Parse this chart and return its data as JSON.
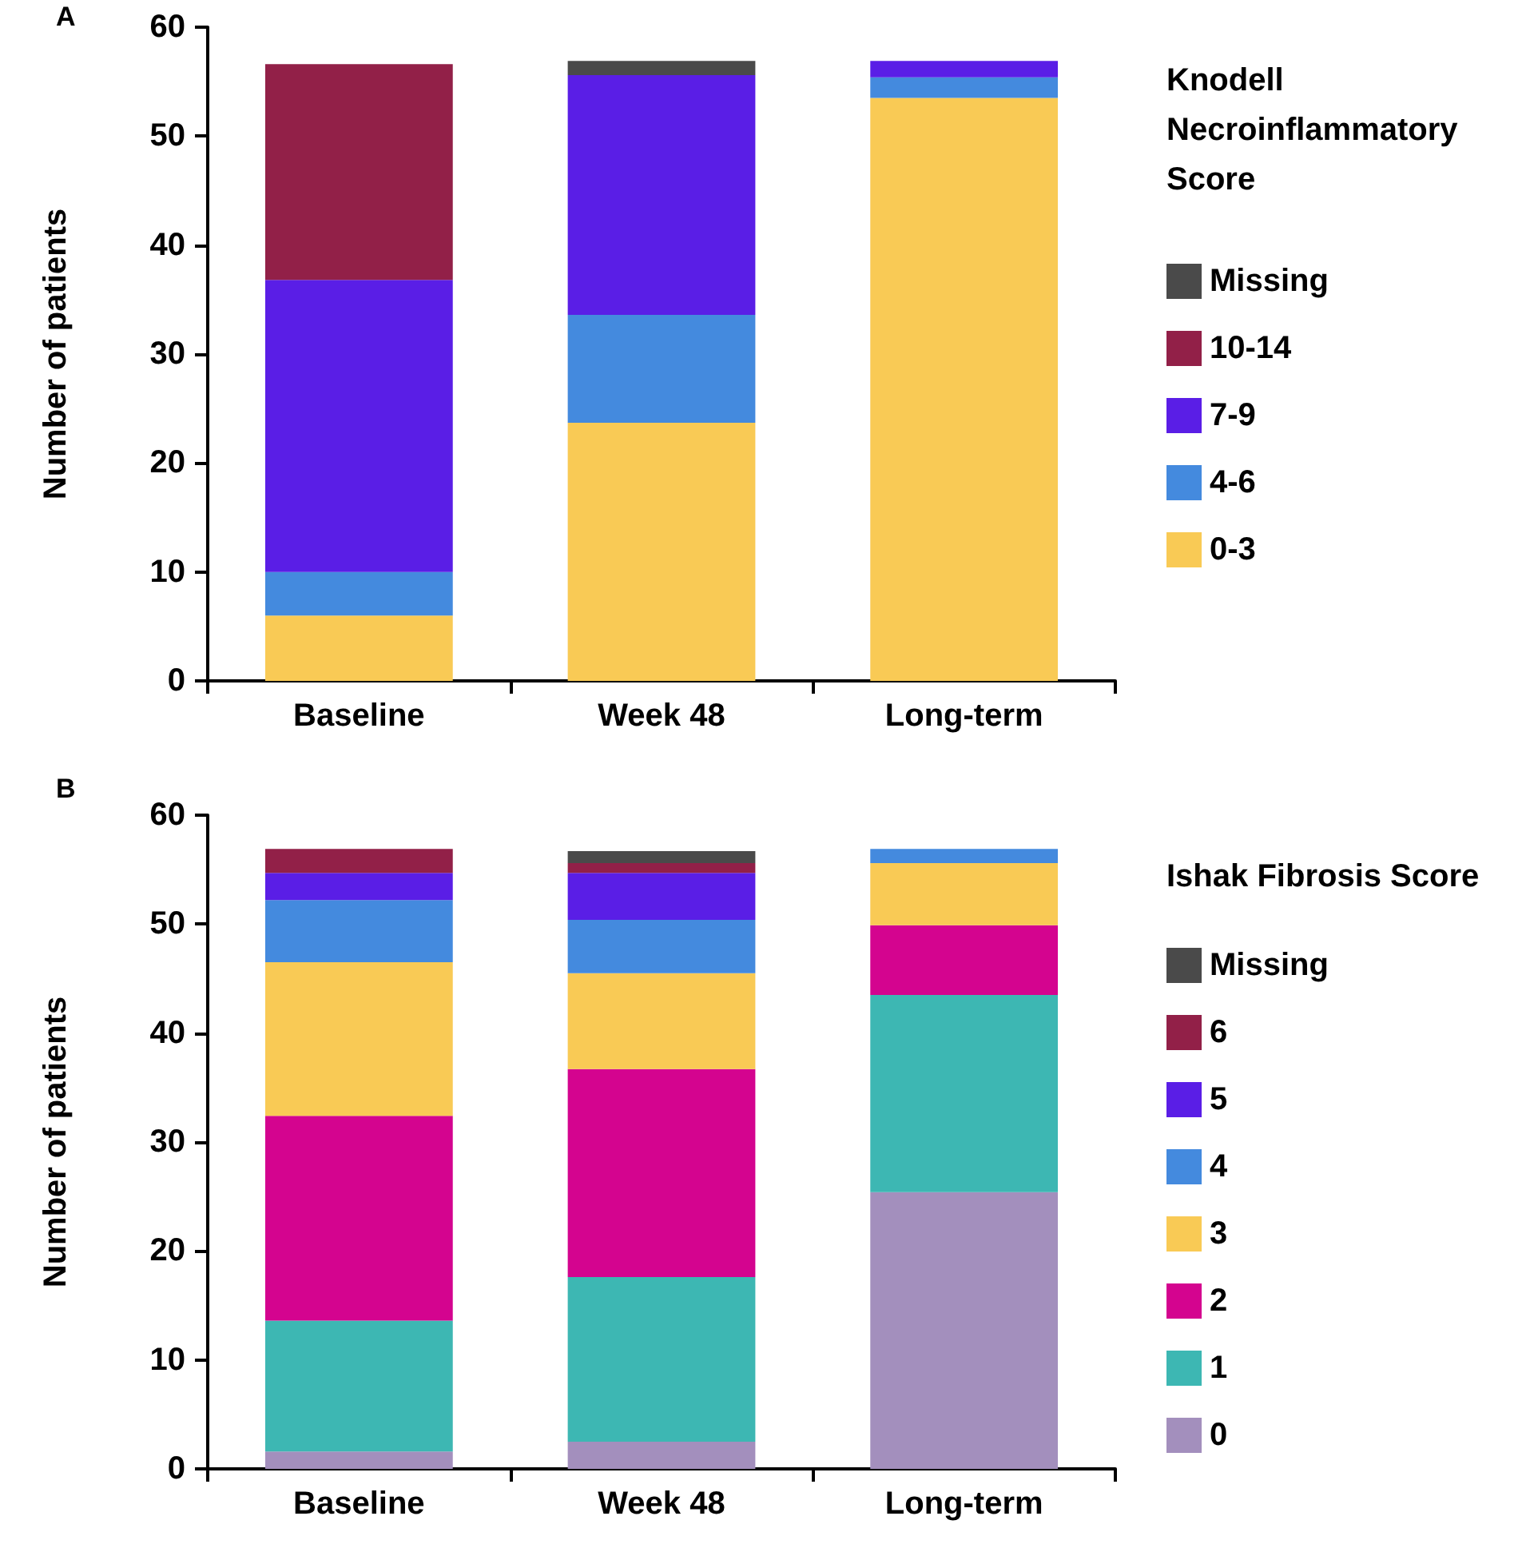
{
  "chart_data": [
    {
      "type": "bar",
      "stacked": true,
      "annotations": [
        "A"
      ],
      "ylabel": "Number of patients",
      "legend_title": "Knodell Necroinflammatory Score",
      "legend": "right",
      "grid": false,
      "categories": [
        "Baseline",
        "Week 48",
        "Long-term"
      ],
      "ylim": [
        0,
        60
      ],
      "yticks": [
        0,
        10,
        20,
        30,
        40,
        50,
        60
      ],
      "series": [
        {
          "name": "0-3",
          "color": "#f9ca55",
          "values": [
            6.0,
            23.7,
            53.5
          ]
        },
        {
          "name": "4-6",
          "color": "#448ade",
          "values": [
            4.0,
            9.9,
            1.9
          ]
        },
        {
          "name": "7-9",
          "color": "#5a1ee6",
          "values": [
            26.8,
            22.0,
            1.5
          ]
        },
        {
          "name": "10-14",
          "color": "#922048",
          "values": [
            19.8,
            0,
            0
          ]
        },
        {
          "name": "Missing",
          "color": "#4a4a4a",
          "values": [
            0,
            1.3,
            0
          ]
        }
      ]
    },
    {
      "type": "bar",
      "stacked": true,
      "annotations": [
        "B"
      ],
      "ylabel": "Number of patients",
      "legend_title": "Ishak Fibrosis Score",
      "legend": "right",
      "grid": false,
      "categories": [
        "Baseline",
        "Week 48",
        "Long-term"
      ],
      "ylim": [
        0,
        60
      ],
      "yticks": [
        0,
        10,
        20,
        30,
        40,
        50,
        60
      ],
      "series": [
        {
          "name": "0",
          "color": "#a38fbd",
          "values": [
            1.6,
            2.5,
            25.4
          ]
        },
        {
          "name": "1",
          "color": "#3db7b3",
          "values": [
            12.0,
            15.1,
            18.1
          ]
        },
        {
          "name": "2",
          "color": "#d4048f",
          "values": [
            18.8,
            19.1,
            6.4
          ]
        },
        {
          "name": "3",
          "color": "#f9ca55",
          "values": [
            14.1,
            8.8,
            5.7
          ]
        },
        {
          "name": "4",
          "color": "#448ade",
          "values": [
            5.7,
            4.9,
            1.3
          ]
        },
        {
          "name": "5",
          "color": "#5a1ee6",
          "values": [
            2.5,
            4.3,
            0
          ]
        },
        {
          "name": "6",
          "color": "#922048",
          "values": [
            2.2,
            0.9,
            0
          ]
        },
        {
          "name": "Missing",
          "color": "#4a4a4a",
          "values": [
            0,
            1.1,
            0
          ]
        }
      ]
    }
  ]
}
